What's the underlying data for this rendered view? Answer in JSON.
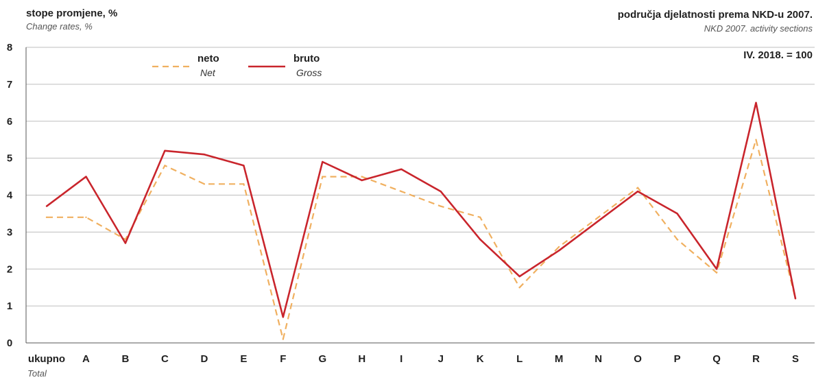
{
  "header": {
    "ylabel_hr": "stope promjene, %",
    "ylabel_en": "Change rates, %",
    "title_hr": "područja djelatnosti prema NKD-u 2007.",
    "title_en": "NKD 2007. activity sections",
    "base_note": "IV. 2018. = 100"
  },
  "colors": {
    "net": "#f0b060",
    "gross": "#c9252c",
    "grid": "#bdbdbd",
    "axis": "#555555"
  },
  "chart_data": {
    "type": "line",
    "title": "područja djelatnosti prema NKD-u 2007.",
    "subtitle": "NKD 2007. activity sections",
    "ylabel": "stope promjene, %",
    "ylabel_sub": "Change rates, %",
    "annotation": "IV. 2018. = 100",
    "ylim": [
      0,
      8
    ],
    "yticks": [
      "0",
      "1",
      "2",
      "3",
      "4",
      "5",
      "6",
      "7",
      "8"
    ],
    "grid": true,
    "legend_position": "top-left",
    "categories": [
      "ukupno",
      "A",
      "B",
      "C",
      "D",
      "E",
      "F",
      "G",
      "H",
      "I",
      "J",
      "K",
      "L",
      "M",
      "N",
      "O",
      "P",
      "Q",
      "R",
      "S"
    ],
    "category_sub": [
      "Total",
      "",
      "",
      "",
      "",
      "",
      "",
      "",
      "",
      "",
      "",
      "",
      "",
      "",
      "",
      "",
      "",
      "",
      "",
      ""
    ],
    "series": [
      {
        "name": "neto",
        "name_sub": "Net",
        "style": "dashed",
        "values": [
          3.4,
          3.4,
          2.8,
          4.8,
          4.3,
          4.3,
          0.1,
          4.5,
          4.5,
          4.1,
          3.7,
          3.4,
          1.5,
          2.6,
          3.4,
          4.2,
          2.8,
          1.9,
          5.5,
          1.2
        ]
      },
      {
        "name": "bruto",
        "name_sub": "Gross",
        "style": "solid",
        "values": [
          3.7,
          4.5,
          2.7,
          5.2,
          5.1,
          4.8,
          0.7,
          4.9,
          4.4,
          4.7,
          4.1,
          2.8,
          1.8,
          2.5,
          3.3,
          4.1,
          3.5,
          2.0,
          6.5,
          1.2
        ]
      }
    ]
  }
}
